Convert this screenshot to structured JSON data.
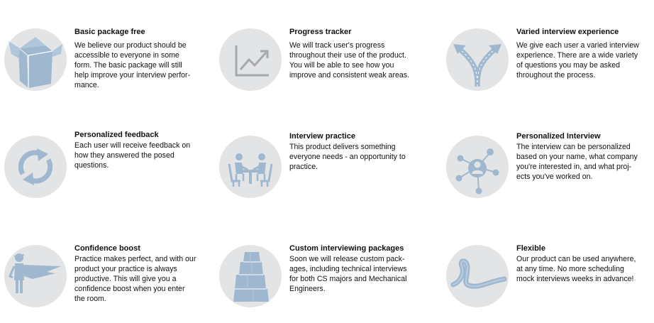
{
  "colors": {
    "circle_background": "#e3e4e6",
    "icon_blue": "#9fb8cf",
    "icon_gray": "#a7a9ac",
    "text": "#111111"
  },
  "features": [
    {
      "icon": "open-box-icon",
      "title": "Basic package free",
      "lines": [
        "We believe our product should be",
        "accessible to everyone in some",
        "form. The basic package will still",
        "help improve your interview perfor-",
        "mance."
      ]
    },
    {
      "icon": "trend-chart-icon",
      "title": "Progress tracker",
      "lines": [
        "We will track user's progress",
        "throughout their use of the product.",
        "You will be able to see how you",
        "improve and consistent weak areas."
      ]
    },
    {
      "icon": "fork-arrows-icon",
      "title": "Varied interview experience",
      "lines": [
        "We give each user a varied interview",
        "experience. There are a wide variety",
        "of questions you may be asked",
        "throughout the process."
      ]
    },
    {
      "icon": "refresh-cycle-icon",
      "title": "Personalized feedback",
      "lines": [
        "Each user will receive feedback on",
        "how they answered the posed",
        "questions."
      ]
    },
    {
      "icon": "meeting-table-icon",
      "title": "Interview practice",
      "lines": [
        "This product delivers something",
        "everyone needs - an opportunity to",
        "practice."
      ]
    },
    {
      "icon": "user-network-icon",
      "title": "Personalized Interview",
      "lines": [
        "The interview can be personalized",
        "based on your name, what company",
        "you're interested in, and what proj-",
        "ects you've worked on."
      ]
    },
    {
      "icon": "superhero-cape-icon",
      "title": "Confidence boost",
      "lines": [
        "Practice makes perfect, and with our",
        "product your practice is always",
        "productive. This will give you a",
        "confidence boost when you enter",
        "the room."
      ]
    },
    {
      "icon": "stacked-packages-icon",
      "title": "Custom interviewing packages",
      "lines": [
        "Soon we will release custom pack-",
        "ages, including technical interviews",
        "for both CS majors and Mechanical",
        "Engineers."
      ]
    },
    {
      "icon": "loop-ribbon-icon",
      "title": "Flexible",
      "lines": [
        "Our product can be used anywhere,",
        "at any time. No more scheduling",
        "mock interviews weeks in advance!"
      ]
    }
  ]
}
